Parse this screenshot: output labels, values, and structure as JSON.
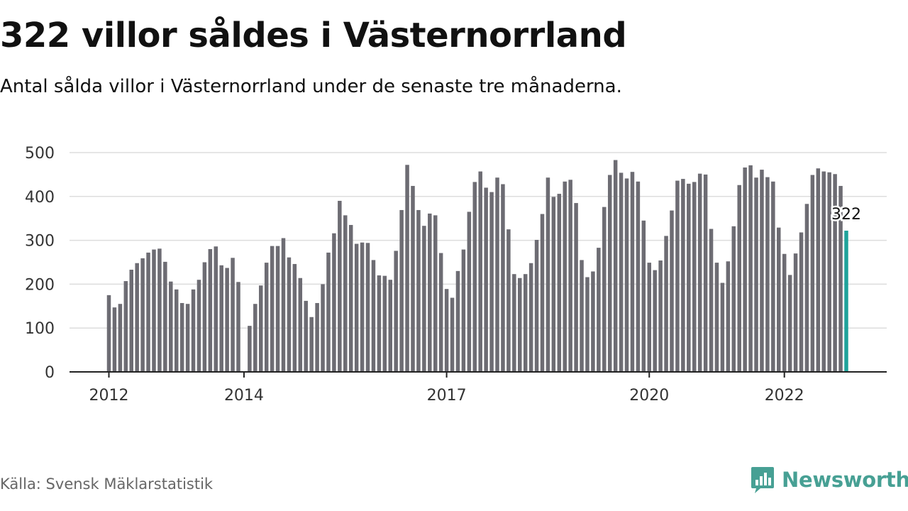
{
  "title": "322 villor såldes i Västernorrland",
  "subtitle": "Antal sålda villor i Västernorrland under de senaste tre månaderna.",
  "source": "Källa: Svensk Mäklarstatistik",
  "logo": {
    "text": "Newsworthy",
    "icon": "newsworthy-chart-icon"
  },
  "colors": {
    "bar": "#6d6c73",
    "highlight": "#1fa39a",
    "grid": "#dddddd",
    "axis": "#222222",
    "brand": "#47a094"
  },
  "chart_data": {
    "type": "bar",
    "title": "322 villor såldes i Västernorrland",
    "subtitle": "Antal sålda villor i Västernorrland under de senaste tre månaderna.",
    "x_start": "2012-01",
    "x_ticks": [
      "2012",
      "2014",
      "2017",
      "2020",
      "2022"
    ],
    "y_ticks": [
      0,
      100,
      200,
      300,
      400,
      500
    ],
    "ylim": [
      0,
      500
    ],
    "grid": true,
    "highlight_label": "322",
    "series": [
      {
        "values": [
          175,
          147,
          155,
          207,
          233,
          248,
          259,
          272,
          279,
          281,
          251,
          206,
          188,
          157,
          155,
          188,
          210,
          250,
          280,
          286,
          243,
          237,
          260,
          205,
          0,
          105,
          155,
          197,
          249,
          287,
          287,
          305,
          261,
          246,
          214,
          162,
          125,
          157,
          200,
          272,
          316,
          390,
          357,
          335,
          292,
          295,
          294,
          255,
          220,
          219,
          210,
          276,
          369,
          472,
          424,
          369,
          333,
          361,
          357,
          271,
          189,
          169,
          230,
          279,
          365,
          433,
          457,
          420,
          410,
          443,
          428,
          325,
          223,
          214,
          223,
          248,
          301,
          360,
          443,
          399,
          406,
          434,
          438,
          385,
          255,
          216,
          229,
          283,
          376,
          449,
          483,
          454,
          441,
          456,
          434,
          345,
          249,
          232,
          254,
          310,
          368,
          436,
          440,
          429,
          433,
          452,
          450,
          326,
          249,
          203,
          252,
          332,
          426,
          466,
          471,
          443,
          461,
          444,
          434,
          329,
          269,
          221,
          270,
          318,
          383,
          449,
          464,
          457,
          455,
          451,
          424,
          322
        ]
      }
    ]
  }
}
